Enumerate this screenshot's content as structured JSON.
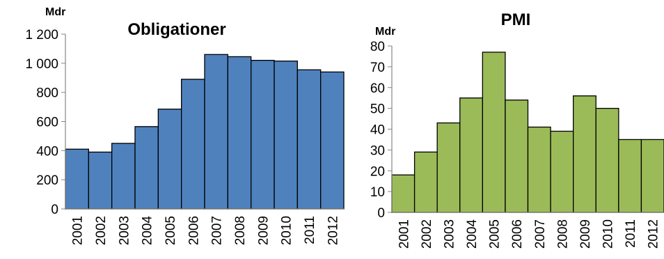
{
  "chart_data": [
    {
      "type": "bar",
      "title": "Obligationer",
      "unit_label": "Mdr",
      "categories": [
        "2001",
        "2002",
        "2003",
        "2004",
        "2005",
        "2006",
        "2007",
        "2008",
        "2009",
        "2010",
        "2011",
        "2012"
      ],
      "values": [
        410,
        390,
        450,
        565,
        685,
        890,
        1060,
        1045,
        1020,
        1015,
        955,
        940
      ],
      "ylim": [
        0,
        1200
      ],
      "yticks": [
        0,
        200,
        400,
        600,
        800,
        1000,
        1200
      ],
      "ytick_labels": [
        "0",
        "200",
        "400",
        "600",
        "800",
        "1 000",
        "1 200"
      ],
      "color": "#4F81BD",
      "grid": false,
      "legend": "none"
    },
    {
      "type": "bar",
      "title": "PMI",
      "unit_label": "Mdr",
      "categories": [
        "2001",
        "2002",
        "2003",
        "2004",
        "2005",
        "2006",
        "2007",
        "2008",
        "2009",
        "2010",
        "2011",
        "2012"
      ],
      "values": [
        18,
        29,
        43,
        55,
        77,
        54,
        41,
        39,
        56,
        50,
        35,
        35
      ],
      "ylim": [
        0,
        80
      ],
      "yticks": [
        0,
        10,
        20,
        30,
        40,
        50,
        60,
        70,
        80
      ],
      "ytick_labels": [
        "0",
        "10",
        "20",
        "30",
        "40",
        "50",
        "60",
        "70",
        "80"
      ],
      "color": "#9BBB59",
      "grid": false,
      "legend": "none"
    }
  ]
}
